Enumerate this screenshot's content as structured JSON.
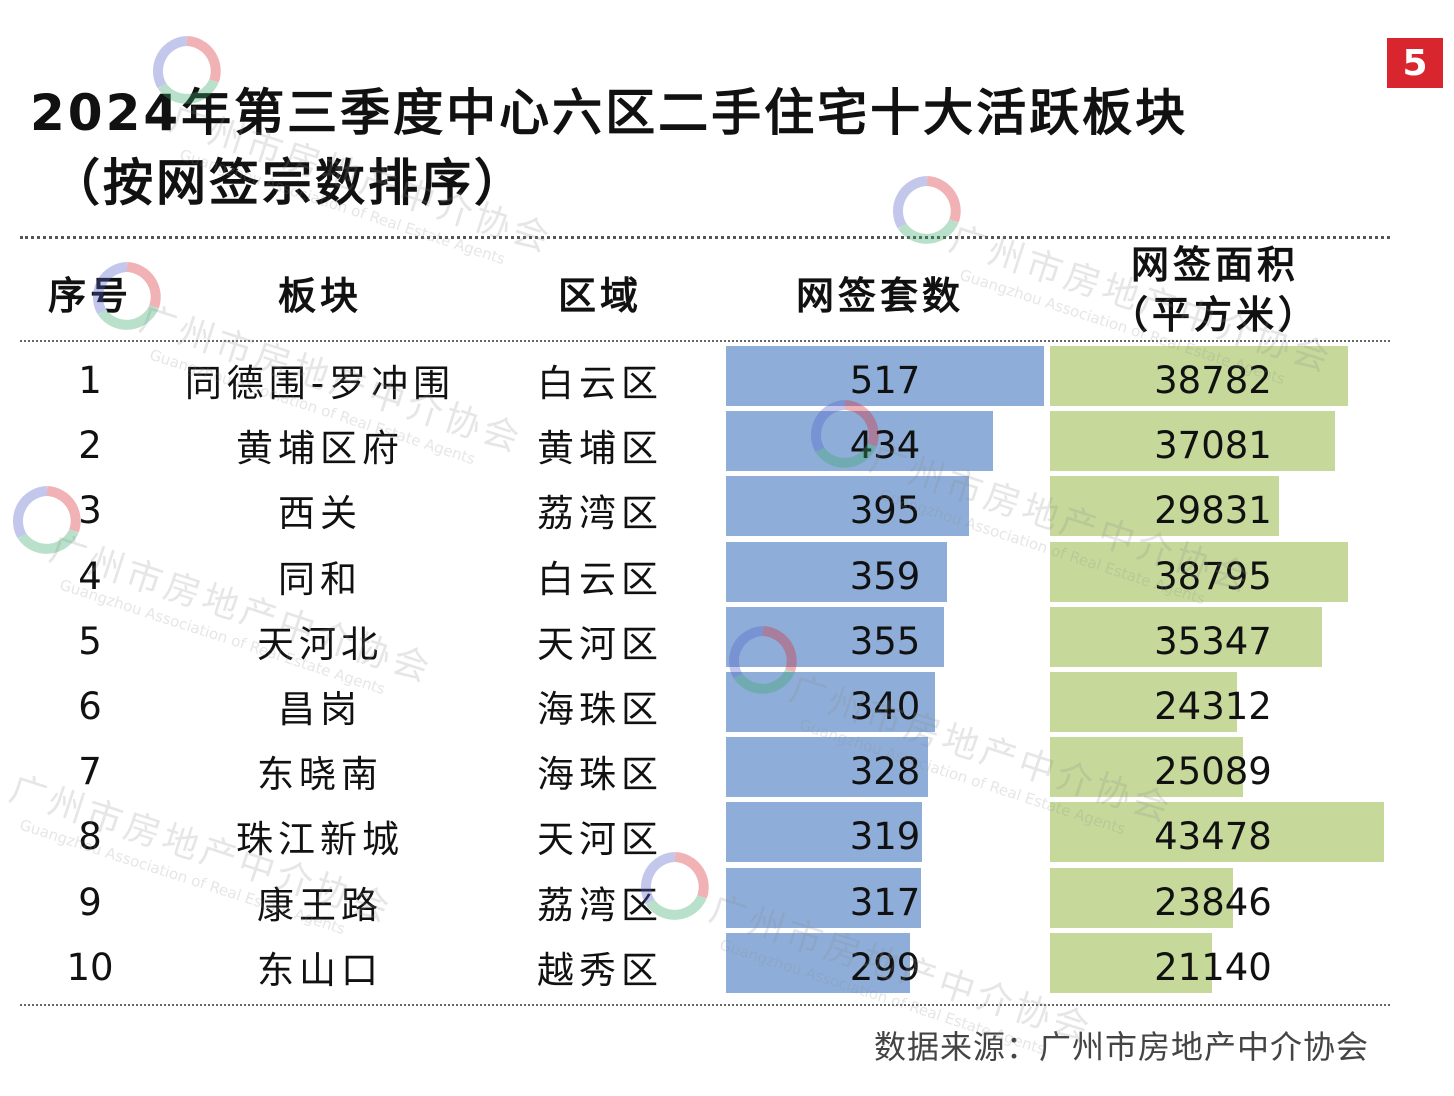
{
  "page_number": "5",
  "title": {
    "line1": "2024年第三季度中心六区二手住宅十大活跃板块",
    "line2": "（按网签宗数排序）"
  },
  "table": {
    "headers": {
      "rank": "序号",
      "block": "板块",
      "district": "区域",
      "units": "网签套数",
      "area_line1": "网签面积",
      "area_line2": "（平方米）"
    },
    "rows": [
      {
        "rank": "1",
        "block": "同德围-罗冲围",
        "district": "白云区",
        "units": 517,
        "area": 38782
      },
      {
        "rank": "2",
        "block": "黄埔区府",
        "district": "黄埔区",
        "units": 434,
        "area": 37081
      },
      {
        "rank": "3",
        "block": "西关",
        "district": "荔湾区",
        "units": 395,
        "area": 29831
      },
      {
        "rank": "4",
        "block": "同和",
        "district": "白云区",
        "units": 359,
        "area": 38795
      },
      {
        "rank": "5",
        "block": "天河北",
        "district": "天河区",
        "units": 355,
        "area": 35347
      },
      {
        "rank": "6",
        "block": "昌岗",
        "district": "海珠区",
        "units": 340,
        "area": 24312
      },
      {
        "rank": "7",
        "block": "东晓南",
        "district": "海珠区",
        "units": 328,
        "area": 25089
      },
      {
        "rank": "8",
        "block": "珠江新城",
        "district": "天河区",
        "units": 319,
        "area": 43478
      },
      {
        "rank": "9",
        "block": "康王路",
        "district": "荔湾区",
        "units": 317,
        "area": 23846
      },
      {
        "rank": "10",
        "block": "东山口",
        "district": "越秀区",
        "units": 299,
        "area": 21140
      }
    ]
  },
  "source": "数据来源：广州市房地产中介协会",
  "watermark": {
    "cn": "广州市房地产中介协会",
    "en": "Guangzhou Association of Real Estate Agents"
  },
  "colors": {
    "units_bar": "#8eaed9",
    "area_bar": "#c6d99a",
    "badge": "#d9262e"
  },
  "chart_data": {
    "type": "table",
    "columns": [
      "序号",
      "板块",
      "区域",
      "网签套数",
      "网签面积（平方米）"
    ],
    "series": [
      {
        "name": "网签套数",
        "values": [
          517,
          434,
          395,
          359,
          355,
          340,
          328,
          319,
          317,
          299
        ]
      },
      {
        "name": "网签面积（平方米）",
        "values": [
          38782,
          37081,
          29831,
          38795,
          35347,
          24312,
          25089,
          43478,
          23846,
          21140
        ]
      }
    ],
    "categories": [
      "同德围-罗冲围",
      "黄埔区府",
      "西关",
      "同和",
      "天河北",
      "昌岗",
      "东晓南",
      "珠江新城",
      "康王路",
      "东山口"
    ]
  }
}
